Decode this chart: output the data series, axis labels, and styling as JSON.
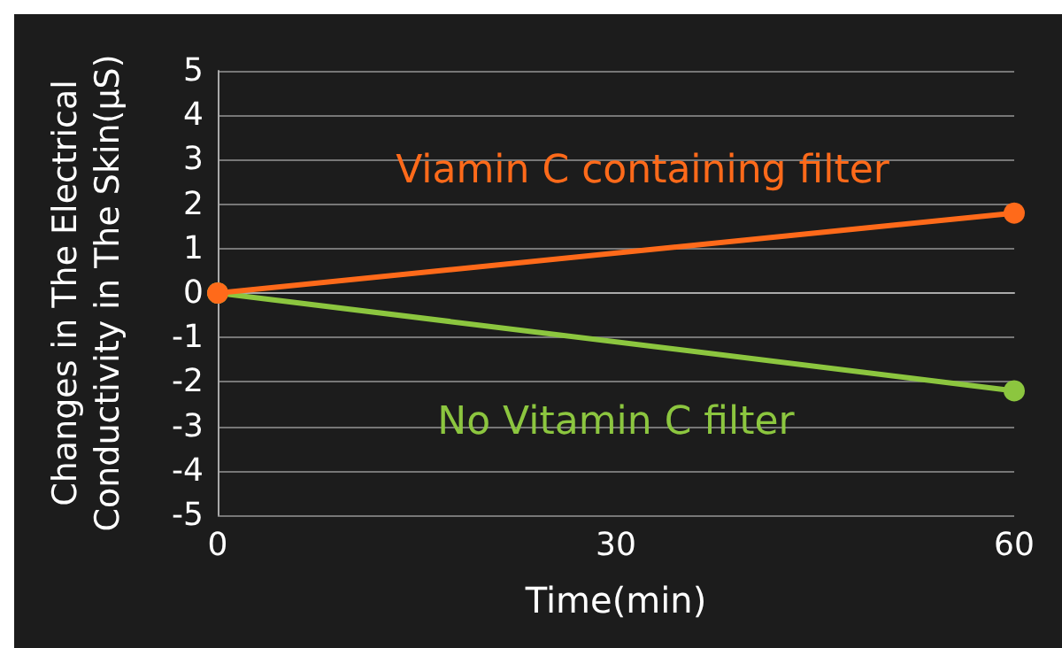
{
  "chart_data": {
    "type": "line",
    "xlabel": "Time(min)",
    "ylabel": "Changes in The Electrical\nConductivity in The Skin(μS)",
    "x": [
      0,
      60
    ],
    "xlim": [
      0,
      60
    ],
    "xticks": [
      0,
      30,
      60
    ],
    "ylim": [
      -5,
      5
    ],
    "yticks": [
      -5,
      -4,
      -3,
      -2,
      -1,
      0,
      1,
      2,
      3,
      4,
      5
    ],
    "grid": "y",
    "legend": false,
    "marker": "circle",
    "line_style": "solid",
    "series": [
      {
        "name": "Viamin C containing filter",
        "color": "#ff6a1a",
        "values": [
          0,
          1.8
        ]
      },
      {
        "name": "No Vitamin C filter",
        "color": "#8cc63f",
        "values": [
          0,
          -2.2
        ]
      }
    ]
  }
}
